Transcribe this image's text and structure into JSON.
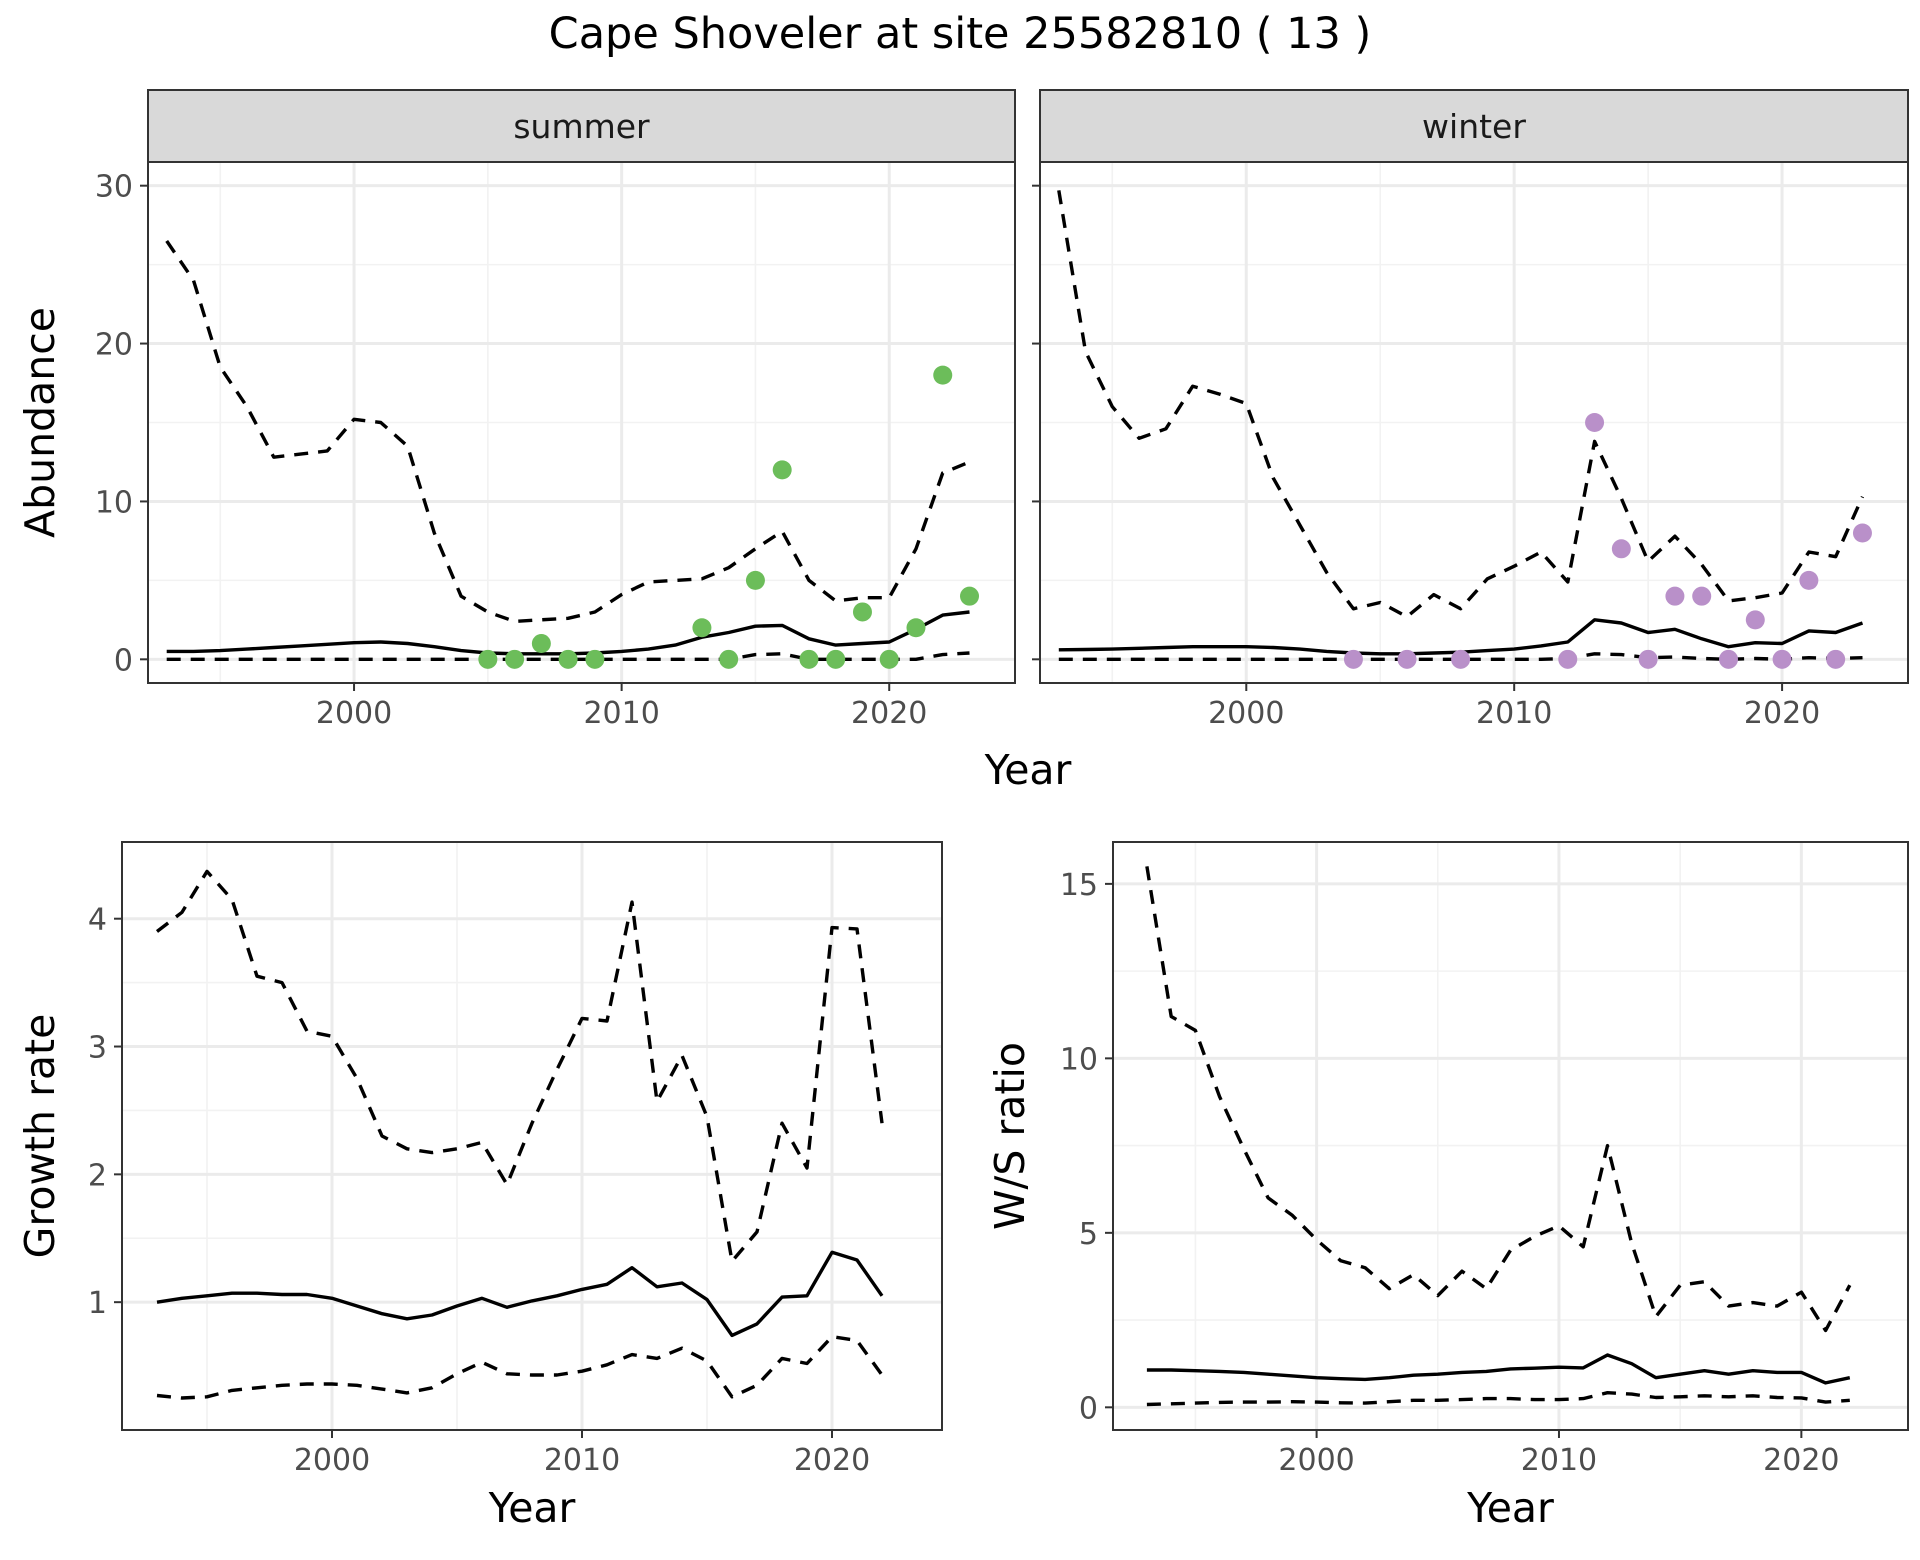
{
  "title": "Cape Shoveler at site 25582810 ( 13 )",
  "colors": {
    "summer_points": "#6cbd5a",
    "winter_points": "#b990c9",
    "lines": "#000000"
  },
  "chart_data": [
    {
      "type": "line",
      "panel": "summer",
      "strip": "summer",
      "xlabel": "Year",
      "ylabel": "Abundance",
      "xlim": [
        1992.3,
        2024.7
      ],
      "ylim": [
        -1.5,
        31.5
      ],
      "x_ticks": [
        2000,
        2010,
        2020
      ],
      "y_ticks": [
        0,
        10,
        20,
        30
      ],
      "x_minor": [
        1995,
        2005,
        2015
      ],
      "y_minor": [
        5,
        15,
        25
      ],
      "grid": true,
      "legend": "none",
      "series": [
        {
          "style": "solid",
          "x": [
            1993,
            1994,
            1995,
            1996,
            1997,
            1998,
            1999,
            2000,
            2001,
            2002,
            2003,
            2004,
            2005,
            2006,
            2007,
            2008,
            2009,
            2010,
            2011,
            2012,
            2013,
            2014,
            2015,
            2016,
            2017,
            2018,
            2019,
            2020,
            2021,
            2022,
            2023
          ],
          "y": [
            0.5,
            0.5,
            0.55,
            0.65,
            0.75,
            0.85,
            0.95,
            1.05,
            1.1,
            1.0,
            0.8,
            0.55,
            0.4,
            0.35,
            0.35,
            0.35,
            0.4,
            0.5,
            0.65,
            0.9,
            1.4,
            1.7,
            2.1,
            2.15,
            1.3,
            0.9,
            1.0,
            1.1,
            1.9,
            2.8,
            3.0
          ]
        },
        {
          "style": "dashed",
          "x": [
            1993,
            1994,
            1995,
            1996,
            1997,
            1998,
            1999,
            2000,
            2001,
            2002,
            2003,
            2004,
            2005,
            2006,
            2007,
            2008,
            2009,
            2010,
            2011,
            2012,
            2013,
            2014,
            2015,
            2016,
            2017,
            2018,
            2019,
            2020,
            2021,
            2022,
            2023
          ],
          "y": [
            26.5,
            24.0,
            18.5,
            16.0,
            12.8,
            13.0,
            13.2,
            15.2,
            15.0,
            13.5,
            8.0,
            4.0,
            3.0,
            2.4,
            2.5,
            2.6,
            3.0,
            4.1,
            4.9,
            5.0,
            5.1,
            5.8,
            7.0,
            8.1,
            5.0,
            3.7,
            3.9,
            3.9,
            7.0,
            11.8,
            12.5
          ]
        },
        {
          "style": "dashed",
          "x": [
            1993,
            1994,
            1995,
            1996,
            1997,
            1998,
            1999,
            2000,
            2001,
            2002,
            2003,
            2004,
            2005,
            2006,
            2007,
            2008,
            2009,
            2010,
            2011,
            2012,
            2013,
            2014,
            2015,
            2016,
            2017,
            2018,
            2019,
            2020,
            2021,
            2022,
            2023
          ],
          "y": [
            0,
            0,
            0,
            0,
            0,
            0,
            0,
            0,
            0,
            0,
            0,
            0,
            0,
            0,
            0,
            0,
            0,
            0,
            0,
            0,
            0,
            0,
            0.3,
            0.35,
            0,
            0,
            0,
            0,
            0,
            0.3,
            0.4
          ]
        }
      ],
      "points": {
        "x": [
          2005,
          2006,
          2007,
          2008,
          2009,
          2013,
          2014,
          2015,
          2016,
          2017,
          2018,
          2019,
          2020,
          2021,
          2022,
          2023
        ],
        "y": [
          0,
          0,
          1,
          0,
          0,
          2,
          0,
          5,
          12,
          0,
          0,
          3,
          0,
          2,
          18,
          4
        ]
      }
    },
    {
      "type": "line",
      "panel": "winter",
      "strip": "winter",
      "xlabel": "Year",
      "ylabel": "Abundance",
      "xlim": [
        1992.3,
        2024.7
      ],
      "ylim": [
        -1.5,
        31.5
      ],
      "x_ticks": [
        2000,
        2010,
        2020
      ],
      "y_ticks": [
        0,
        10,
        20,
        30
      ],
      "x_minor": [
        1995,
        2005,
        2015
      ],
      "y_minor": [
        5,
        15,
        25
      ],
      "grid": true,
      "legend": "none",
      "series": [
        {
          "style": "solid",
          "x": [
            1993,
            1994,
            1995,
            1996,
            1997,
            1998,
            1999,
            2000,
            2001,
            2002,
            2003,
            2004,
            2005,
            2006,
            2007,
            2008,
            2009,
            2010,
            2011,
            2012,
            2013,
            2014,
            2015,
            2016,
            2017,
            2018,
            2019,
            2020,
            2021,
            2022,
            2023
          ],
          "y": [
            0.6,
            0.62,
            0.65,
            0.7,
            0.75,
            0.8,
            0.8,
            0.8,
            0.75,
            0.65,
            0.5,
            0.4,
            0.35,
            0.35,
            0.4,
            0.45,
            0.55,
            0.65,
            0.85,
            1.1,
            2.5,
            2.3,
            1.7,
            1.9,
            1.3,
            0.8,
            1.05,
            1.0,
            1.8,
            1.7,
            2.3
          ]
        },
        {
          "style": "dashed",
          "x": [
            1993,
            1994,
            1995,
            1996,
            1997,
            1998,
            1999,
            2000,
            2001,
            2002,
            2003,
            2004,
            2005,
            2006,
            2007,
            2008,
            2009,
            2010,
            2011,
            2012,
            2013,
            2014,
            2015,
            2016,
            2017,
            2018,
            2019,
            2020,
            2021,
            2022,
            2023
          ],
          "y": [
            29.7,
            19.5,
            16.0,
            14.0,
            14.6,
            17.3,
            16.8,
            16.2,
            11.5,
            8.5,
            5.5,
            3.2,
            3.6,
            2.7,
            4.1,
            3.2,
            5.1,
            5.9,
            6.8,
            4.9,
            13.8,
            10.2,
            6.2,
            7.8,
            6.0,
            3.7,
            3.9,
            4.2,
            6.8,
            6.5,
            10.3
          ]
        },
        {
          "style": "dashed",
          "x": [
            1993,
            1994,
            1995,
            1996,
            1997,
            1998,
            1999,
            2000,
            2001,
            2002,
            2003,
            2004,
            2005,
            2006,
            2007,
            2008,
            2009,
            2010,
            2011,
            2012,
            2013,
            2014,
            2015,
            2016,
            2017,
            2018,
            2019,
            2020,
            2021,
            2022,
            2023
          ],
          "y": [
            0,
            0,
            0,
            0,
            0,
            0,
            0,
            0,
            0,
            0,
            0,
            0,
            0,
            0,
            0,
            0,
            0,
            0,
            0,
            0.05,
            0.35,
            0.3,
            0.1,
            0.15,
            0.05,
            0,
            0.05,
            0,
            0.1,
            0.05,
            0.1
          ]
        }
      ],
      "points": {
        "x": [
          2004,
          2006,
          2008,
          2012,
          2013,
          2014,
          2015,
          2016,
          2017,
          2018,
          2019,
          2020,
          2021,
          2022,
          2023
        ],
        "y": [
          0,
          0,
          0,
          0,
          15,
          7,
          0,
          4,
          4,
          0,
          2.5,
          0,
          5,
          0,
          8
        ]
      }
    },
    {
      "type": "line",
      "panel": "growth",
      "xlabel": "Year",
      "ylabel": "Growth rate",
      "xlim": [
        1991.6,
        2024.4
      ],
      "ylim": [
        0.0,
        4.6
      ],
      "x_ticks": [
        2000,
        2010,
        2020
      ],
      "y_ticks": [
        1,
        2,
        3,
        4
      ],
      "x_minor": [
        1995,
        2005,
        2015
      ],
      "y_minor": [
        1.5,
        2.5,
        3.5
      ],
      "grid": true,
      "legend": "none",
      "series": [
        {
          "style": "solid",
          "x": [
            1993,
            1994,
            1995,
            1996,
            1997,
            1998,
            1999,
            2000,
            2001,
            2002,
            2003,
            2004,
            2005,
            2006,
            2007,
            2008,
            2009,
            2010,
            2011,
            2012,
            2013,
            2014,
            2015,
            2016,
            2017,
            2018,
            2019,
            2020,
            2021,
            2022
          ],
          "y": [
            1.0,
            1.03,
            1.05,
            1.07,
            1.07,
            1.06,
            1.06,
            1.03,
            0.97,
            0.91,
            0.87,
            0.9,
            0.97,
            1.03,
            0.96,
            1.01,
            1.05,
            1.1,
            1.14,
            1.27,
            1.12,
            1.15,
            1.02,
            0.74,
            0.83,
            1.04,
            1.05,
            1.39,
            1.33,
            1.05
          ]
        },
        {
          "style": "dashed",
          "x": [
            1993,
            1994,
            1995,
            1996,
            1997,
            1998,
            1999,
            2000,
            2001,
            2002,
            2003,
            2004,
            2005,
            2006,
            2007,
            2008,
            2009,
            2010,
            2011,
            2012,
            2013,
            2014,
            2015,
            2016,
            2017,
            2018,
            2019,
            2020,
            2021,
            2022
          ],
          "y": [
            3.9,
            4.05,
            4.37,
            4.15,
            3.55,
            3.5,
            3.12,
            3.08,
            2.75,
            2.3,
            2.2,
            2.17,
            2.2,
            2.25,
            1.92,
            2.4,
            2.82,
            3.22,
            3.2,
            4.13,
            2.57,
            2.93,
            2.45,
            1.32,
            1.55,
            2.4,
            2.05,
            3.93,
            3.92,
            2.4
          ]
        },
        {
          "style": "dashed",
          "x": [
            1993,
            1994,
            1995,
            1996,
            1997,
            1998,
            1999,
            2000,
            2001,
            2002,
            2003,
            2004,
            2005,
            2006,
            2007,
            2008,
            2009,
            2010,
            2011,
            2012,
            2013,
            2014,
            2015,
            2016,
            2017,
            2018,
            2019,
            2020,
            2021,
            2022
          ],
          "y": [
            0.27,
            0.25,
            0.26,
            0.31,
            0.33,
            0.35,
            0.36,
            0.36,
            0.35,
            0.32,
            0.29,
            0.33,
            0.44,
            0.53,
            0.44,
            0.43,
            0.43,
            0.46,
            0.51,
            0.59,
            0.56,
            0.64,
            0.54,
            0.26,
            0.35,
            0.56,
            0.52,
            0.73,
            0.7,
            0.43
          ]
        }
      ]
    },
    {
      "type": "line",
      "panel": "ratio",
      "xlabel": "Year",
      "ylabel": "W/S ratio",
      "xlim": [
        1991.6,
        2024.4
      ],
      "ylim": [
        -0.65,
        16.2
      ],
      "x_ticks": [
        2000,
        2010,
        2020
      ],
      "y_ticks": [
        0,
        5,
        10,
        15
      ],
      "x_minor": [
        1995,
        2005,
        2015
      ],
      "y_minor": [
        2.5,
        7.5,
        12.5
      ],
      "grid": true,
      "legend": "none",
      "series": [
        {
          "style": "solid",
          "x": [
            1993,
            1994,
            1995,
            1996,
            1997,
            1998,
            1999,
            2000,
            2001,
            2002,
            2003,
            2004,
            2005,
            2006,
            2007,
            2008,
            2009,
            2010,
            2011,
            2012,
            2013,
            2014,
            2015,
            2016,
            2017,
            2018,
            2019,
            2020,
            2021,
            2022
          ],
          "y": [
            1.07,
            1.07,
            1.05,
            1.03,
            1.0,
            0.95,
            0.9,
            0.85,
            0.82,
            0.8,
            0.85,
            0.92,
            0.95,
            1.0,
            1.03,
            1.1,
            1.12,
            1.15,
            1.13,
            1.5,
            1.25,
            0.85,
            0.95,
            1.05,
            0.95,
            1.05,
            1.0,
            1.0,
            0.7,
            0.85
          ]
        },
        {
          "style": "dashed",
          "x": [
            1993,
            1994,
            1995,
            1996,
            1997,
            1998,
            1999,
            2000,
            2001,
            2002,
            2003,
            2004,
            2005,
            2006,
            2007,
            2008,
            2009,
            2010,
            2011,
            2012,
            2013,
            2014,
            2015,
            2016,
            2017,
            2018,
            2019,
            2020,
            2021,
            2022
          ],
          "y": [
            15.5,
            11.2,
            10.8,
            8.9,
            7.4,
            6.0,
            5.5,
            4.8,
            4.2,
            4.0,
            3.4,
            3.8,
            3.2,
            3.9,
            3.4,
            4.5,
            4.9,
            5.2,
            4.6,
            7.5,
            4.7,
            2.6,
            3.5,
            3.6,
            2.9,
            3.0,
            2.9,
            3.3,
            2.2,
            3.5
          ]
        },
        {
          "style": "dashed",
          "x": [
            1993,
            1994,
            1995,
            1996,
            1997,
            1998,
            1999,
            2000,
            2001,
            2002,
            2003,
            2004,
            2005,
            2006,
            2007,
            2008,
            2009,
            2010,
            2011,
            2012,
            2013,
            2014,
            2015,
            2016,
            2017,
            2018,
            2019,
            2020,
            2021,
            2022
          ],
          "y": [
            0.08,
            0.1,
            0.12,
            0.14,
            0.15,
            0.15,
            0.16,
            0.15,
            0.13,
            0.12,
            0.16,
            0.2,
            0.2,
            0.22,
            0.25,
            0.25,
            0.22,
            0.22,
            0.25,
            0.42,
            0.38,
            0.28,
            0.3,
            0.33,
            0.3,
            0.33,
            0.28,
            0.27,
            0.15,
            0.2
          ]
        }
      ]
    }
  ]
}
